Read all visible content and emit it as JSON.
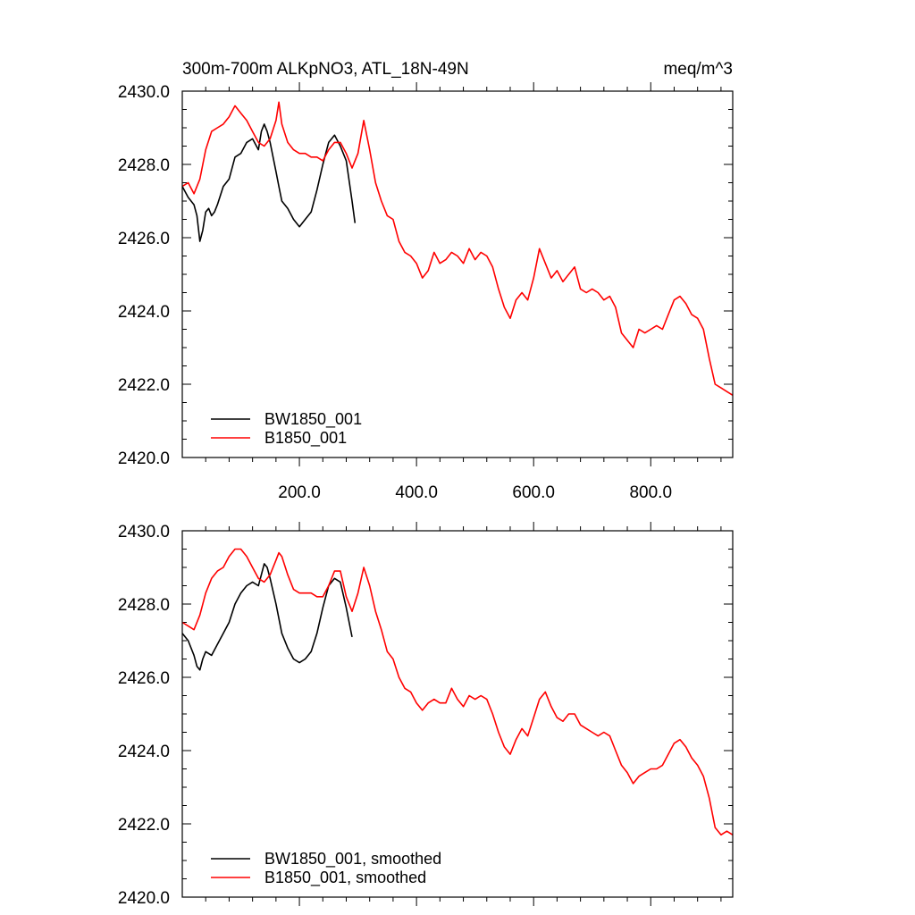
{
  "chart_data": [
    {
      "type": "line",
      "title": "300m-700m ALKpNO3, ATL_18N-49N",
      "units": "meq/m^3",
      "xlim": [
        0,
        940
      ],
      "ylim": [
        2420,
        2430
      ],
      "x_ticks": [
        200,
        400,
        600,
        800
      ],
      "x_tick_labels": [
        "200.0",
        "400.0",
        "600.0",
        "800.0"
      ],
      "y_ticks": [
        2420,
        2422,
        2424,
        2426,
        2428,
        2430
      ],
      "y_tick_labels": [
        "2420.0",
        "2422.0",
        "2424.0",
        "2426.0",
        "2428.0",
        "2430.0"
      ],
      "legend": {
        "position": "bottom-left",
        "entries": [
          "BW1850_001",
          "B1850_001"
        ]
      },
      "series": [
        {
          "name": "BW1850_001",
          "color": "#000000",
          "x": [
            0,
            10,
            20,
            25,
            30,
            35,
            40,
            45,
            50,
            55,
            60,
            70,
            80,
            90,
            100,
            110,
            120,
            130,
            135,
            140,
            145,
            150,
            155,
            160,
            165,
            170,
            175,
            180,
            190,
            200,
            210,
            220,
            230,
            240,
            250,
            260,
            270,
            280,
            290,
            295
          ],
          "values": [
            2427.4,
            2427.1,
            2426.9,
            2426.6,
            2425.9,
            2426.2,
            2426.7,
            2426.8,
            2426.6,
            2426.7,
            2426.9,
            2427.4,
            2427.6,
            2428.2,
            2428.3,
            2428.6,
            2428.7,
            2428.4,
            2428.9,
            2429.1,
            2428.9,
            2428.6,
            2428.2,
            2427.8,
            2427.4,
            2427.0,
            2426.9,
            2426.8,
            2426.5,
            2426.3,
            2426.5,
            2426.7,
            2427.3,
            2428.0,
            2428.6,
            2428.8,
            2428.5,
            2428.1,
            2427.0,
            2426.4
          ]
        },
        {
          "name": "B1850_001",
          "color": "#ff0000",
          "x": [
            0,
            10,
            20,
            30,
            40,
            50,
            60,
            70,
            80,
            90,
            100,
            110,
            120,
            130,
            140,
            150,
            160,
            165,
            170,
            180,
            190,
            200,
            210,
            220,
            230,
            240,
            250,
            260,
            270,
            280,
            290,
            300,
            310,
            320,
            330,
            340,
            350,
            360,
            370,
            380,
            390,
            400,
            410,
            420,
            430,
            440,
            450,
            460,
            470,
            480,
            490,
            500,
            510,
            520,
            530,
            540,
            550,
            560,
            570,
            580,
            590,
            600,
            610,
            620,
            630,
            640,
            650,
            660,
            670,
            680,
            690,
            700,
            710,
            720,
            730,
            740,
            750,
            760,
            770,
            780,
            790,
            800,
            810,
            820,
            830,
            840,
            850,
            860,
            870,
            880,
            890,
            900,
            910,
            920,
            930,
            940
          ],
          "values": [
            2427.4,
            2427.5,
            2427.2,
            2427.6,
            2428.4,
            2428.9,
            2429.0,
            2429.1,
            2429.3,
            2429.6,
            2429.4,
            2429.2,
            2428.9,
            2428.6,
            2428.5,
            2428.7,
            2429.2,
            2429.7,
            2429.1,
            2428.6,
            2428.4,
            2428.3,
            2428.3,
            2428.2,
            2428.2,
            2428.1,
            2428.4,
            2428.6,
            2428.6,
            2428.3,
            2427.9,
            2428.3,
            2429.2,
            2428.4,
            2427.5,
            2427.0,
            2426.6,
            2426.5,
            2425.9,
            2425.6,
            2425.5,
            2425.3,
            2424.9,
            2425.1,
            2425.6,
            2425.3,
            2425.4,
            2425.6,
            2425.5,
            2425.3,
            2425.7,
            2425.4,
            2425.6,
            2425.5,
            2425.2,
            2424.6,
            2424.1,
            2423.8,
            2424.3,
            2424.5,
            2424.3,
            2424.9,
            2425.7,
            2425.3,
            2424.9,
            2425.1,
            2424.8,
            2425.0,
            2425.2,
            2424.6,
            2424.5,
            2424.6,
            2424.5,
            2424.3,
            2424.4,
            2424.1,
            2423.4,
            2423.2,
            2423.0,
            2423.5,
            2423.4,
            2423.5,
            2423.6,
            2423.5,
            2423.9,
            2424.3,
            2424.4,
            2424.2,
            2423.9,
            2423.8,
            2423.5,
            2422.7,
            2422.0,
            2421.9,
            2421.8,
            2421.7
          ]
        }
      ]
    },
    {
      "type": "line",
      "xlim": [
        0,
        940
      ],
      "ylim": [
        2420,
        2430
      ],
      "x_ticks": [
        200,
        400,
        600,
        800
      ],
      "y_ticks": [
        2420,
        2422,
        2424,
        2426,
        2428,
        2430
      ],
      "y_tick_labels": [
        "2420.0",
        "2422.0",
        "2424.0",
        "2426.0",
        "2428.0",
        "2430.0"
      ],
      "legend": {
        "position": "bottom-left",
        "entries": [
          "BW1850_001, smoothed",
          "B1850_001, smoothed"
        ]
      },
      "series": [
        {
          "name": "BW1850_001, smoothed",
          "color": "#000000",
          "x": [
            0,
            10,
            20,
            25,
            30,
            35,
            40,
            50,
            60,
            70,
            80,
            90,
            100,
            110,
            120,
            130,
            135,
            140,
            145,
            150,
            160,
            170,
            180,
            190,
            200,
            210,
            220,
            230,
            240,
            250,
            260,
            270,
            280,
            290
          ],
          "values": [
            2427.2,
            2427.0,
            2426.6,
            2426.3,
            2426.2,
            2426.5,
            2426.7,
            2426.6,
            2426.9,
            2427.2,
            2427.5,
            2428.0,
            2428.3,
            2428.5,
            2428.6,
            2428.5,
            2428.8,
            2429.1,
            2429.0,
            2428.7,
            2428.0,
            2427.2,
            2426.8,
            2426.5,
            2426.4,
            2426.5,
            2426.7,
            2427.2,
            2427.9,
            2428.5,
            2428.7,
            2428.6,
            2427.9,
            2427.1
          ]
        },
        {
          "name": "B1850_001, smoothed",
          "color": "#ff0000",
          "x": [
            0,
            10,
            20,
            30,
            40,
            50,
            60,
            70,
            80,
            90,
            100,
            110,
            120,
            130,
            140,
            150,
            160,
            165,
            170,
            180,
            190,
            200,
            210,
            220,
            230,
            240,
            250,
            260,
            270,
            280,
            290,
            300,
            310,
            320,
            330,
            340,
            350,
            360,
            370,
            380,
            390,
            400,
            410,
            420,
            430,
            440,
            450,
            460,
            470,
            480,
            490,
            500,
            510,
            520,
            530,
            540,
            550,
            560,
            570,
            580,
            590,
            600,
            610,
            620,
            630,
            640,
            650,
            660,
            670,
            680,
            690,
            700,
            710,
            720,
            730,
            740,
            750,
            760,
            770,
            780,
            790,
            800,
            810,
            820,
            830,
            840,
            850,
            860,
            870,
            880,
            890,
            900,
            910,
            920,
            930,
            940
          ],
          "values": [
            2427.5,
            2427.4,
            2427.3,
            2427.7,
            2428.3,
            2428.7,
            2428.9,
            2429.0,
            2429.3,
            2429.5,
            2429.5,
            2429.3,
            2429.0,
            2428.7,
            2428.6,
            2428.8,
            2429.2,
            2429.4,
            2429.3,
            2428.8,
            2428.4,
            2428.3,
            2428.3,
            2428.3,
            2428.2,
            2428.2,
            2428.5,
            2428.9,
            2428.9,
            2428.2,
            2427.8,
            2428.3,
            2429.0,
            2428.5,
            2427.8,
            2427.3,
            2426.7,
            2426.5,
            2426.0,
            2425.7,
            2425.6,
            2425.3,
            2425.1,
            2425.3,
            2425.4,
            2425.3,
            2425.3,
            2425.7,
            2425.4,
            2425.2,
            2425.5,
            2425.4,
            2425.5,
            2425.4,
            2425.0,
            2424.5,
            2424.1,
            2423.9,
            2424.3,
            2424.6,
            2424.4,
            2424.9,
            2425.4,
            2425.6,
            2425.2,
            2424.9,
            2424.8,
            2425.0,
            2425.0,
            2424.7,
            2424.6,
            2424.5,
            2424.4,
            2424.5,
            2424.4,
            2424.0,
            2423.6,
            2423.4,
            2423.1,
            2423.3,
            2423.4,
            2423.5,
            2423.5,
            2423.6,
            2423.9,
            2424.2,
            2424.3,
            2424.1,
            2423.8,
            2423.6,
            2423.3,
            2422.7,
            2421.9,
            2421.7,
            2421.8,
            2421.7
          ]
        }
      ]
    }
  ]
}
